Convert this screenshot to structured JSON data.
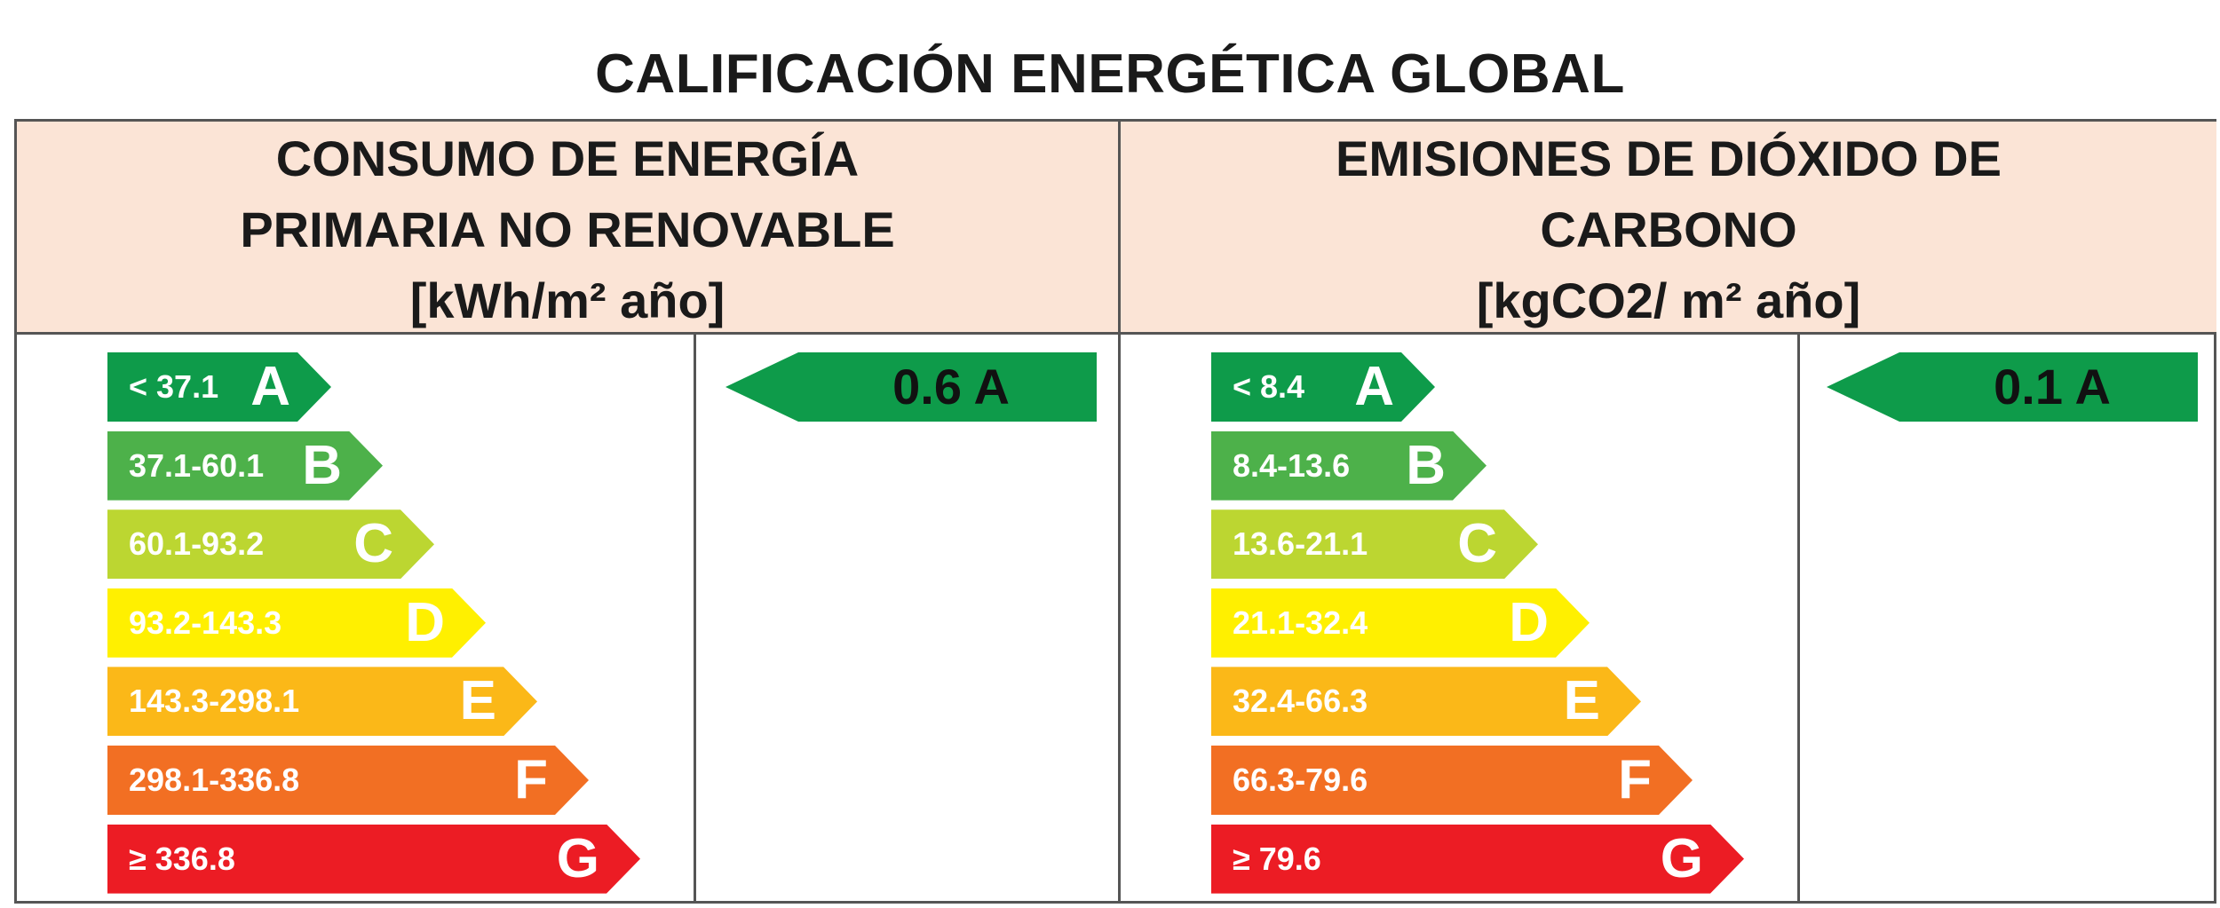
{
  "title": "CALIFICACIÓN ENERGÉTICA GLOBAL",
  "panels": [
    {
      "heading": [
        "CONSUMO DE ENERGÍA",
        "PRIMARIA NO RENOVABLE",
        "[kWh/m² año]"
      ],
      "rating": "0.6 A",
      "scale": [
        {
          "range": "< 37.1",
          "letter": "A",
          "color": "#0e9b4a"
        },
        {
          "range": "37.1-60.1",
          "letter": "B",
          "color": "#4db14a"
        },
        {
          "range": "60.1-93.2",
          "letter": "C",
          "color": "#bcd631"
        },
        {
          "range": "93.2-143.3",
          "letter": "D",
          "color": "#fff000"
        },
        {
          "range": "143.3-298.1",
          "letter": "E",
          "color": "#fbb818"
        },
        {
          "range": "298.1-336.8",
          "letter": "F",
          "color": "#f26f23"
        },
        {
          "range": "≥ 336.8",
          "letter": "G",
          "color": "#ec1c24"
        }
      ]
    },
    {
      "heading": [
        "EMISIONES DE DIÓXIDO DE",
        "CARBONO",
        "[kgCO2/ m² año]"
      ],
      "rating": "0.1 A",
      "scale": [
        {
          "range": "< 8.4",
          "letter": "A",
          "color": "#0e9b4a"
        },
        {
          "range": "8.4-13.6",
          "letter": "B",
          "color": "#4db14a"
        },
        {
          "range": "13.6-21.1",
          "letter": "C",
          "color": "#bcd631"
        },
        {
          "range": "21.1-32.4",
          "letter": "D",
          "color": "#fff000"
        },
        {
          "range": "32.4-66.3",
          "letter": "E",
          "color": "#fbb818"
        },
        {
          "range": "66.3-79.6",
          "letter": "F",
          "color": "#f26f23"
        },
        {
          "range": "≥ 79.6",
          "letter": "G",
          "color": "#ec1c24"
        }
      ]
    }
  ]
}
